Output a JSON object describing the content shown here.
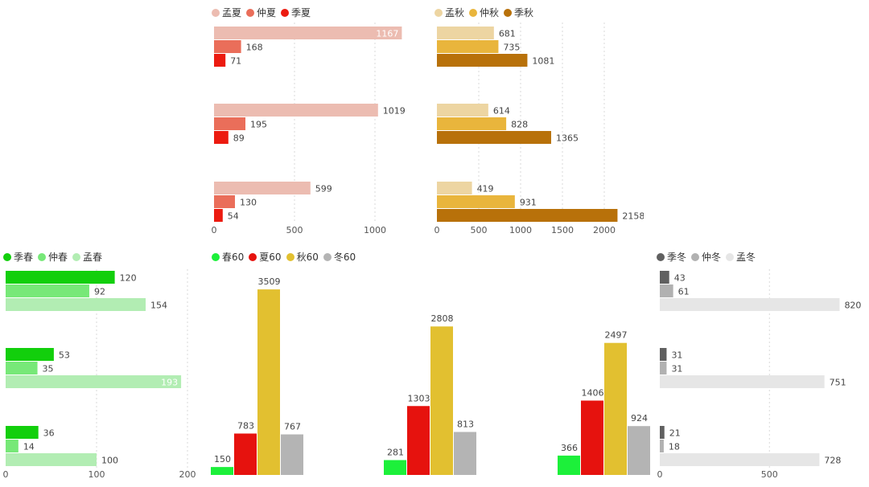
{
  "chart_data": [
    {
      "id": "summer",
      "type": "bar",
      "orientation": "horizontal",
      "series": [
        {
          "name": "孟夏",
          "color": "#ecbcb1",
          "values": [
            1167,
            1019,
            599
          ]
        },
        {
          "name": "仲夏",
          "color": "#ea6e5a",
          "values": [
            168,
            195,
            130
          ]
        },
        {
          "name": "季夏",
          "color": "#ec1b10",
          "values": [
            71,
            89,
            54
          ]
        }
      ],
      "xlim": [
        0,
        1200
      ],
      "ticks": [
        0,
        500,
        1000
      ],
      "tick_labels": [
        "0",
        "500",
        "1000"
      ],
      "legend_position": "top-left",
      "grid": true
    },
    {
      "id": "autumn",
      "type": "bar",
      "orientation": "horizontal",
      "series": [
        {
          "name": "孟秋",
          "color": "#edd5a2",
          "values": [
            681,
            614,
            419
          ]
        },
        {
          "name": "仲秋",
          "color": "#e9b53c",
          "values": [
            735,
            828,
            931
          ]
        },
        {
          "name": "季秋",
          "color": "#b8710a",
          "values": [
            1081,
            1365,
            2158
          ]
        }
      ],
      "xlim": [
        0,
        2250
      ],
      "ticks": [
        0,
        500,
        1000,
        1500,
        2000
      ],
      "tick_labels": [
        "0",
        "500",
        "1000",
        "1500",
        "2000"
      ],
      "legend_position": "top-left",
      "grid": true
    },
    {
      "id": "spring",
      "type": "bar",
      "orientation": "horizontal",
      "series": [
        {
          "name": "季春",
          "color": "#12cf0c",
          "values": [
            120,
            53,
            36
          ]
        },
        {
          "name": "仲春",
          "color": "#77e878",
          "values": [
            92,
            35,
            14
          ]
        },
        {
          "name": "孟春",
          "color": "#b2edb3",
          "values": [
            154,
            193,
            100
          ]
        }
      ],
      "xlim": [
        0,
        200
      ],
      "ticks": [
        0,
        100,
        200
      ],
      "tick_labels": [
        "0",
        "100",
        "200"
      ],
      "legend_position": "top-left",
      "grid": true
    },
    {
      "id": "sixty",
      "type": "bar",
      "orientation": "vertical",
      "series": [
        {
          "name": "春60",
          "color": "#1cf03a",
          "values": [
            150,
            281,
            366
          ]
        },
        {
          "name": "夏60",
          "color": "#e6120e",
          "values": [
            783,
            1303,
            1406
          ]
        },
        {
          "name": "秋60",
          "color": "#e2c030",
          "values": [
            3509,
            2808,
            2497
          ]
        },
        {
          "name": "冬60",
          "color": "#b4b4b4",
          "values": [
            767,
            813,
            924
          ]
        }
      ],
      "ylim": [
        0,
        3600
      ],
      "legend_position": "top-left",
      "grid": false
    },
    {
      "id": "winter",
      "type": "bar",
      "orientation": "horizontal",
      "series": [
        {
          "name": "季冬",
          "color": "#606060",
          "values": [
            43,
            31,
            21
          ]
        },
        {
          "name": "仲冬",
          "color": "#b1b1b1",
          "values": [
            61,
            31,
            18
          ]
        },
        {
          "name": "孟冬",
          "color": "#e6e6e6",
          "values": [
            820,
            751,
            728
          ]
        }
      ],
      "xlim": [
        0,
        820
      ],
      "ticks": [
        0,
        500
      ],
      "tick_labels": [
        "0",
        "500"
      ],
      "legend_position": "top-left",
      "grid": true
    }
  ]
}
